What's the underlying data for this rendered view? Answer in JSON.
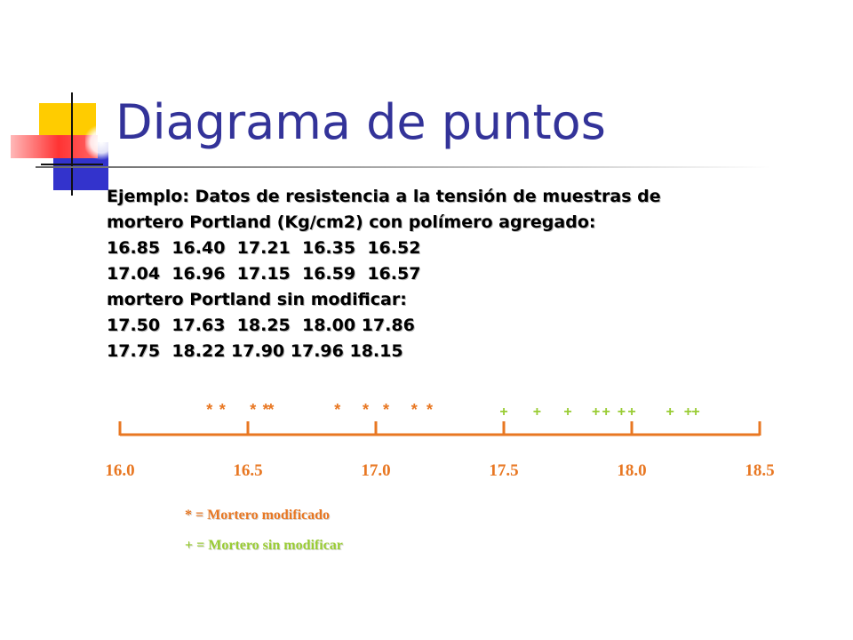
{
  "title": "Diagrama de puntos",
  "body_lines": [
    "Ejemplo: Datos de resistencia a la tensión de muestras de",
    "mortero Portland (Kg/cm2) con polímero agregado:",
    "16.85  16.40  17.21  16.35  16.52",
    "17.04  16.96  17.15  16.59  16.57",
    "mortero Portland sin modificar:",
    "17.50  17.63  18.25  18.00 17.86",
    "17.75  18.22 17.90 17.96 18.15"
  ],
  "chart_data": {
    "type": "scatter",
    "x_ticks": [
      16.0,
      16.5,
      17.0,
      17.5,
      18.0,
      18.5
    ],
    "x_tick_labels": [
      "16.0",
      "16.5",
      "17.0",
      "17.5",
      "18.0",
      "18.5"
    ],
    "xlim": [
      16.0,
      18.5
    ],
    "series": [
      {
        "marker": "*",
        "color": "#e87722",
        "values": [
          16.35,
          16.4,
          16.52,
          16.57,
          16.59,
          16.85,
          16.96,
          17.04,
          17.15,
          17.21
        ]
      },
      {
        "marker": "+",
        "color": "#99cc33",
        "values": [
          17.5,
          17.63,
          17.75,
          17.86,
          17.9,
          17.96,
          18.0,
          18.15,
          18.22,
          18.25
        ]
      }
    ],
    "axis_color": "#e87722",
    "tick_label_color": "#e87722"
  },
  "legend": [
    {
      "text": "* = Mortero modificado",
      "color": "#e87722"
    },
    {
      "text": "+ = Mortero sin modificar",
      "color": "#99cc33"
    }
  ]
}
